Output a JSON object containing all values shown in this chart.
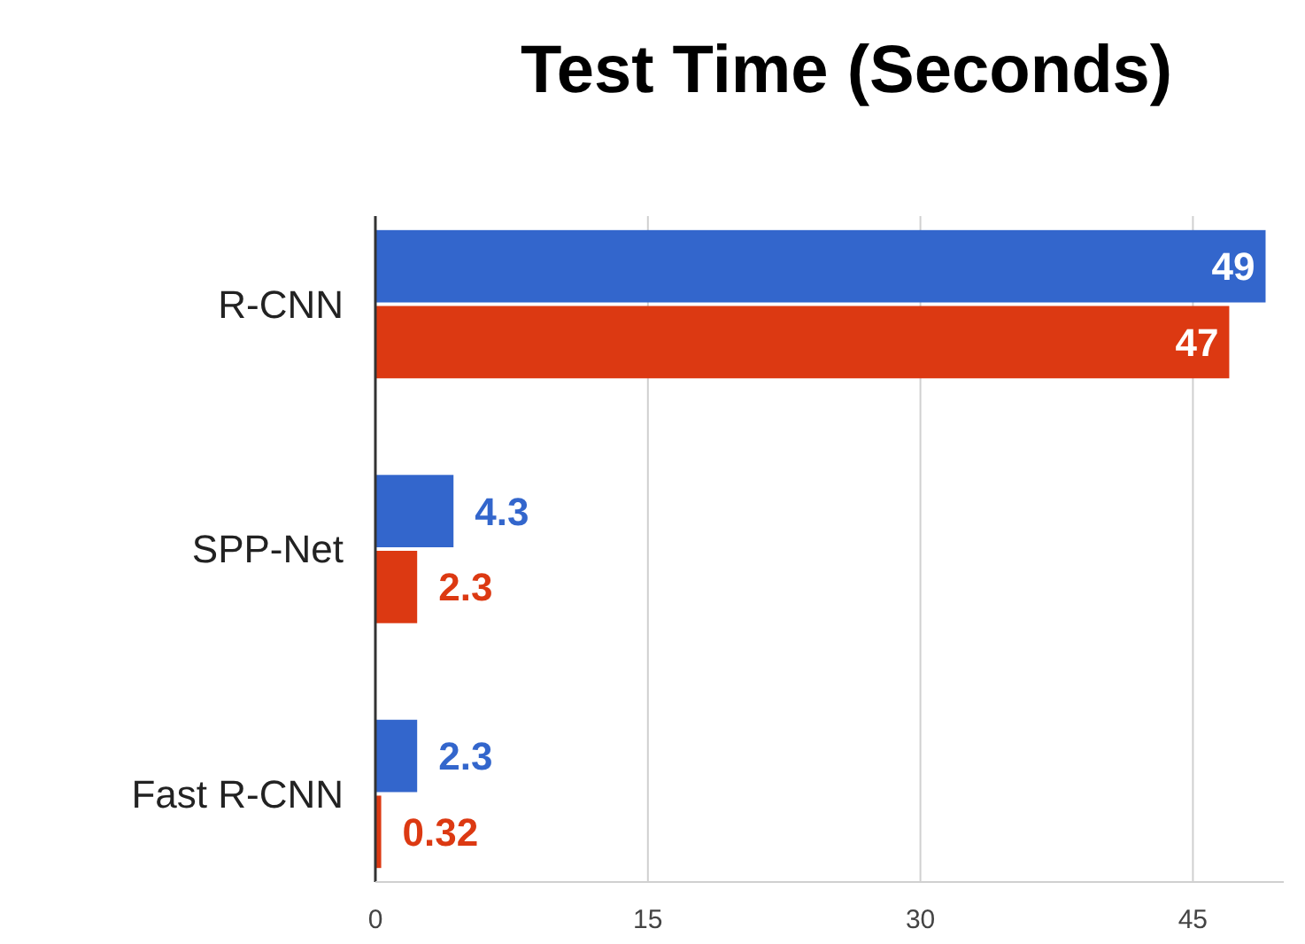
{
  "chart_data": {
    "type": "bar",
    "orientation": "horizontal",
    "title": "Test Time (Seconds)",
    "categories": [
      "R-CNN",
      "SPP-Net",
      "Fast R-CNN"
    ],
    "series": [
      {
        "color": "#3366cc",
        "values": [
          49,
          4.3,
          2.3
        ]
      },
      {
        "color": "#dc3912",
        "values": [
          47,
          2.3,
          0.32
        ]
      }
    ],
    "xlim": [
      0,
      50
    ],
    "xticks": [
      0,
      15,
      30,
      45
    ],
    "grid": "x",
    "data_labels": true
  }
}
